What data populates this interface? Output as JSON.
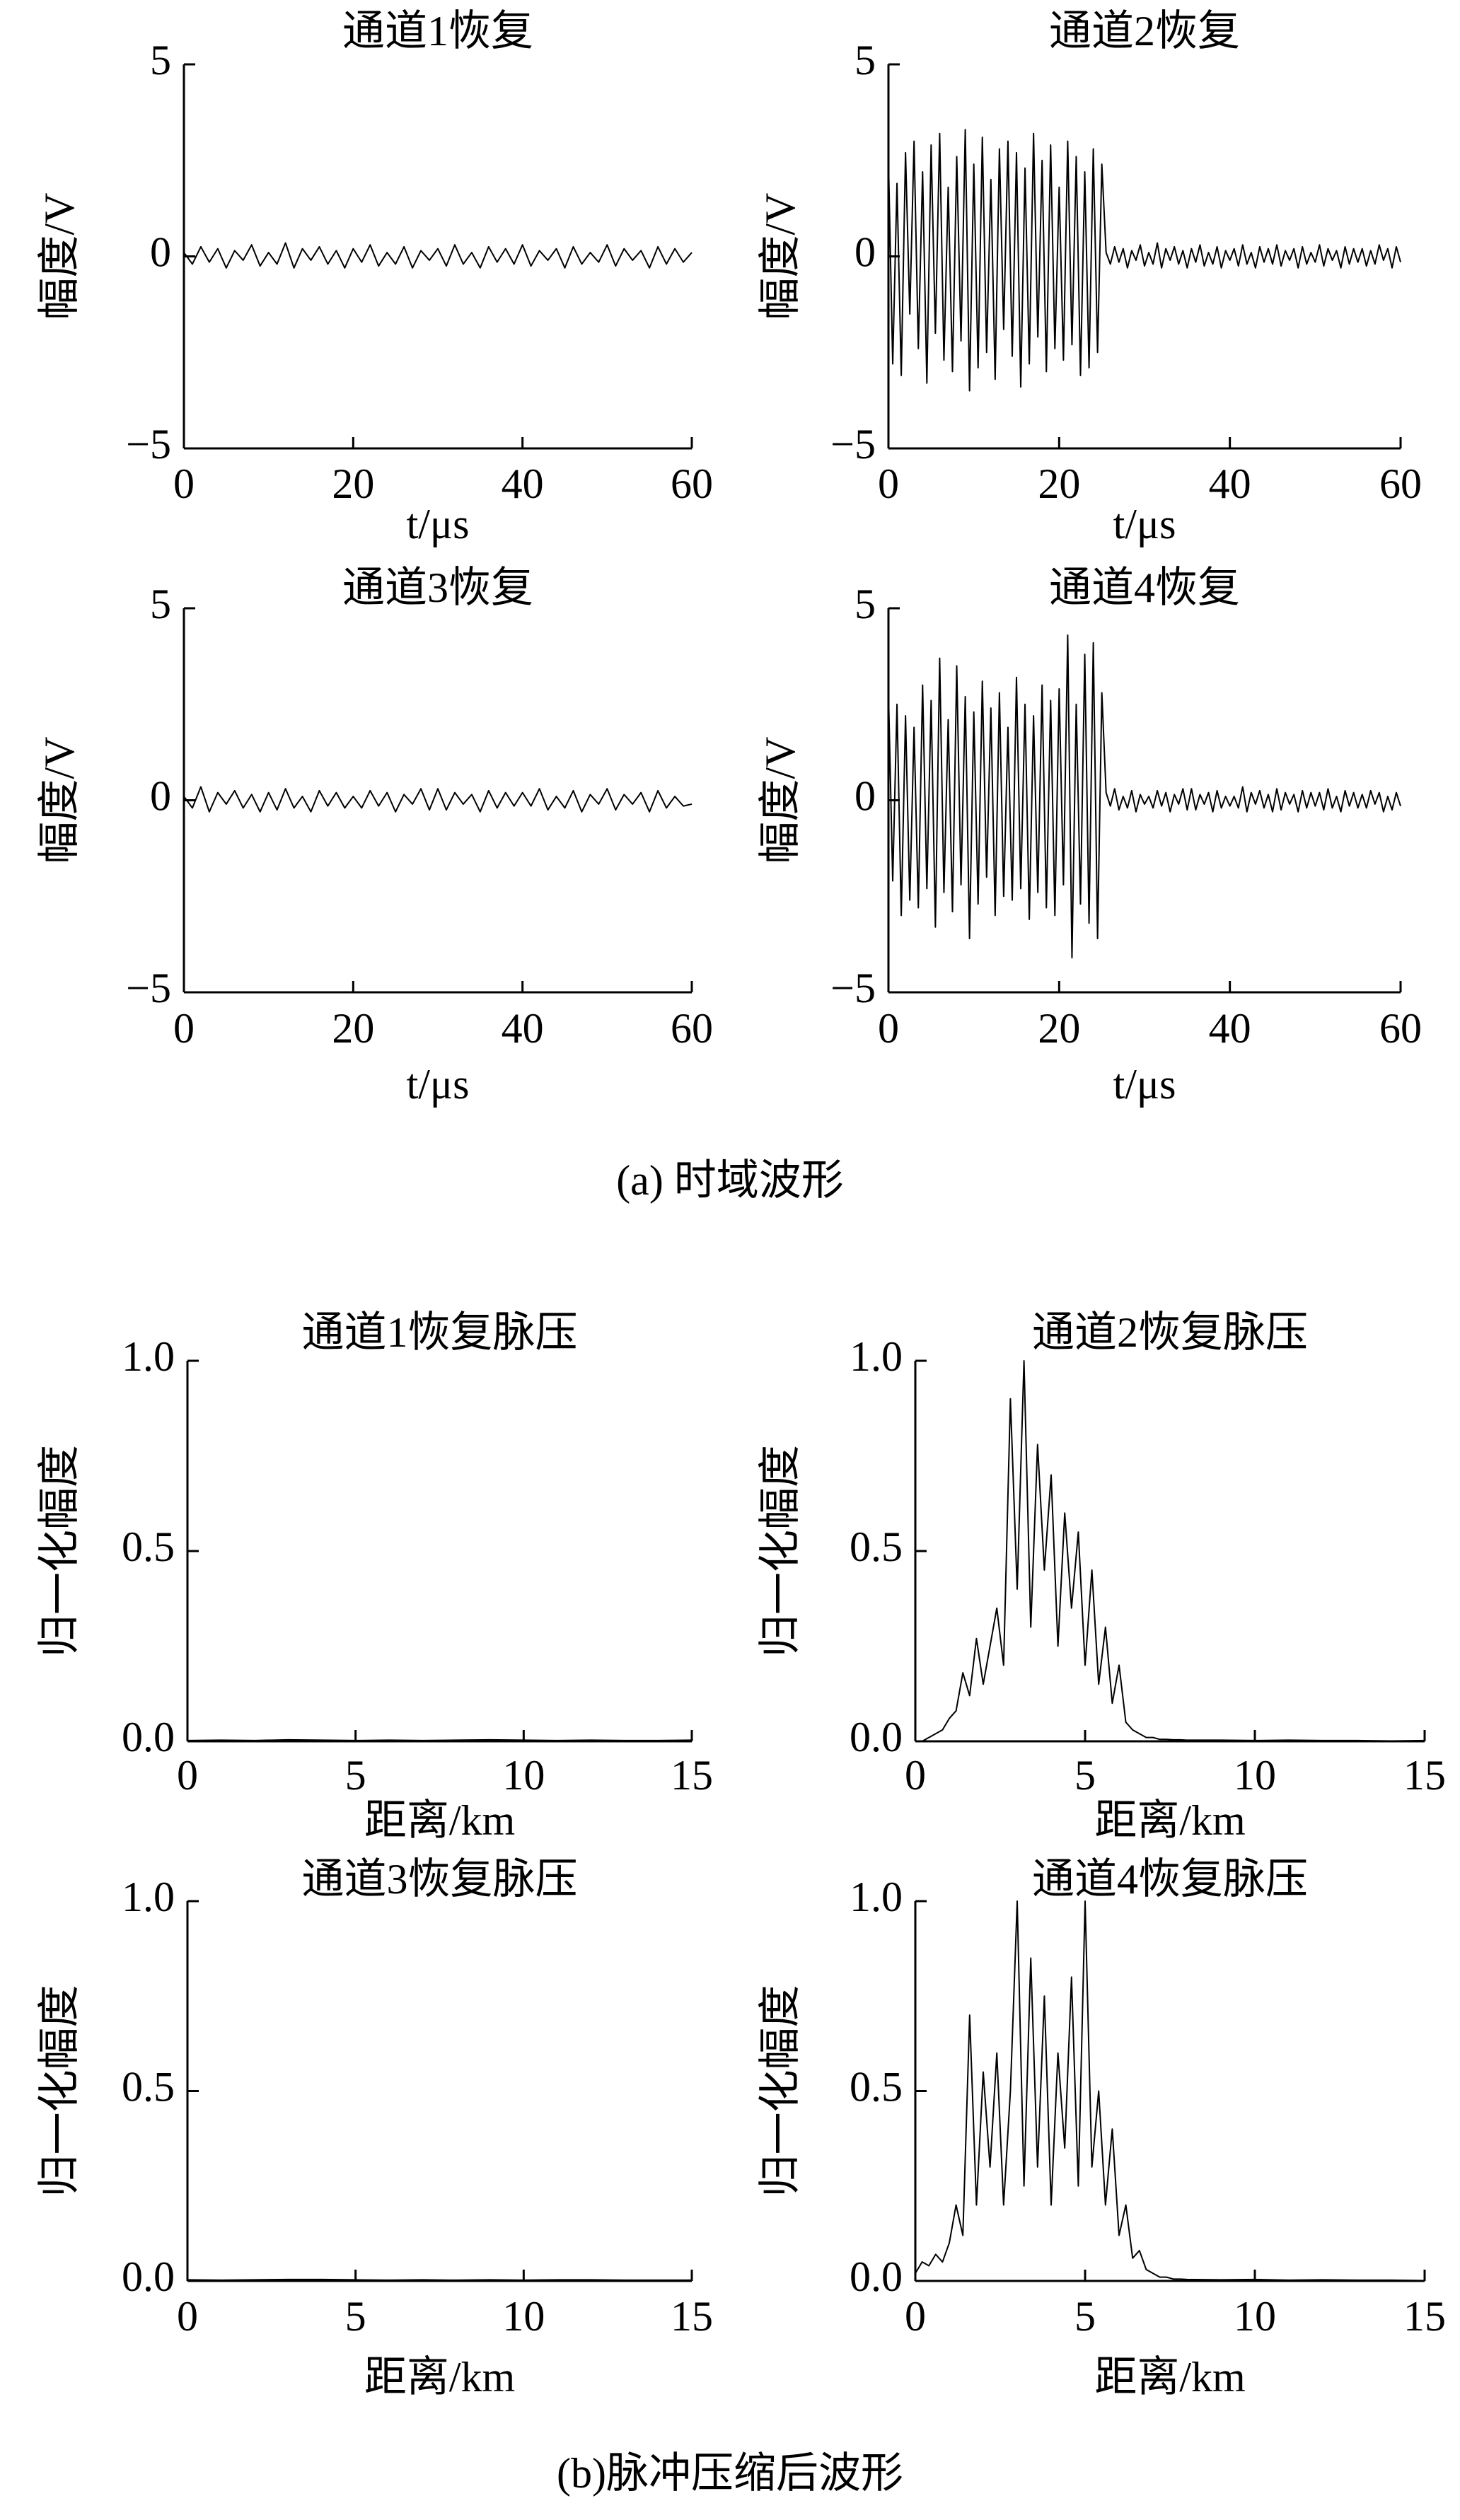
{
  "chart_data": [
    {
      "type": "line",
      "title": "通道1恢复",
      "xlabel": "t/μs",
      "ylabel": "幅度/V",
      "color": "#000000",
      "xlim": [
        0,
        60
      ],
      "ylim": [
        -5,
        5
      ],
      "xticks": [
        0,
        20,
        40,
        60
      ],
      "yticks": [
        {
          "value": -5,
          "label": "−5"
        },
        0,
        5
      ],
      "x": [
        0,
        1,
        2,
        3,
        4,
        5,
        6,
        7,
        8,
        9,
        10,
        11,
        12,
        13,
        14,
        15,
        16,
        17,
        18,
        19,
        20,
        21,
        22,
        23,
        24,
        25,
        26,
        27,
        28,
        29,
        30,
        31,
        32,
        33,
        34,
        35,
        36,
        37,
        38,
        39,
        40,
        41,
        42,
        43,
        44,
        45,
        46,
        47,
        48,
        49,
        50,
        51,
        52,
        53,
        54,
        55,
        56,
        57,
        58,
        59,
        60
      ],
      "values": [
        0.1,
        -0.2,
        0.25,
        -0.15,
        0.2,
        -0.3,
        0.15,
        -0.1,
        0.3,
        -0.25,
        0.1,
        -0.2,
        0.35,
        -0.3,
        0.2,
        -0.1,
        0.25,
        -0.2,
        0.15,
        -0.3,
        0.2,
        -0.15,
        0.3,
        -0.25,
        0.1,
        -0.2,
        0.25,
        -0.3,
        0.15,
        -0.1,
        0.2,
        -0.25,
        0.3,
        -0.2,
        0.1,
        -0.3,
        0.25,
        -0.15,
        0.2,
        -0.2,
        0.3,
        -0.25,
        0.15,
        -0.1,
        0.2,
        -0.3,
        0.25,
        -0.2,
        0.1,
        -0.15,
        0.3,
        -0.25,
        0.2,
        -0.1,
        0.15,
        -0.3,
        0.25,
        -0.2,
        0.2,
        -0.15,
        0.1
      ]
    },
    {
      "type": "line",
      "title": "通道2恢复",
      "xlabel": "t/μs",
      "ylabel": "幅度/V",
      "color": "#000000",
      "xlim": [
        0,
        60
      ],
      "ylim": [
        -5,
        5
      ],
      "xticks": [
        0,
        20,
        40,
        60
      ],
      "yticks": [
        {
          "value": -5,
          "label": "−5"
        },
        0,
        5
      ],
      "x": [
        0,
        0.5,
        1,
        1.5,
        2,
        2.5,
        3,
        3.5,
        4,
        4.5,
        5,
        5.5,
        6,
        6.5,
        7,
        7.5,
        8,
        8.5,
        9,
        9.5,
        10,
        10.5,
        11,
        11.5,
        12,
        12.5,
        13,
        13.5,
        14,
        14.5,
        15,
        15.5,
        16,
        16.5,
        17,
        17.5,
        18,
        18.5,
        19,
        19.5,
        20,
        20.5,
        21,
        21.5,
        22,
        22.5,
        23,
        23.5,
        24,
        24.5,
        25,
        25.5,
        26,
        26.5,
        27,
        27.5,
        28,
        28.5,
        29,
        29.5,
        30,
        30.5,
        31,
        31.5,
        32,
        32.5,
        33,
        33.5,
        34,
        34.5,
        35,
        35.5,
        36,
        36.5,
        37,
        37.5,
        38,
        38.5,
        39,
        39.5,
        40,
        40.5,
        41,
        41.5,
        42,
        42.5,
        43,
        43.5,
        44,
        44.5,
        45,
        45.5,
        46,
        46.5,
        47,
        47.5,
        48,
        48.5,
        49,
        49.5,
        50,
        50.5,
        51,
        51.5,
        52,
        52.5,
        53,
        53.5,
        54,
        54.5,
        55,
        55.5,
        56,
        56.5,
        57,
        57.5,
        58,
        58.5,
        59,
        59.5,
        60
      ],
      "values": [
        2.5,
        -2.8,
        1.9,
        -3.1,
        2.7,
        -1.5,
        3.0,
        -2.4,
        2.2,
        -3.3,
        2.9,
        -2.0,
        3.2,
        -2.7,
        1.8,
        -3.0,
        2.6,
        -2.2,
        3.3,
        -3.5,
        2.4,
        -2.9,
        3.1,
        -2.5,
        2.0,
        -3.2,
        2.8,
        -1.9,
        3.0,
        -2.6,
        2.7,
        -3.4,
        2.3,
        -2.8,
        3.2,
        -2.1,
        2.5,
        -3.0,
        2.9,
        -2.4,
        1.8,
        -2.7,
        3.0,
        -2.3,
        2.6,
        -3.1,
        2.2,
        -2.9,
        2.8,
        -2.5,
        2.4,
        0.1,
        -0.2,
        0.25,
        -0.15,
        0.2,
        -0.3,
        0.15,
        -0.1,
        0.3,
        -0.25,
        0.1,
        -0.2,
        0.35,
        -0.3,
        0.2,
        -0.1,
        0.25,
        -0.2,
        0.15,
        -0.3,
        0.2,
        -0.15,
        0.3,
        -0.25,
        0.1,
        -0.2,
        0.25,
        -0.3,
        0.15,
        -0.1,
        0.2,
        -0.25,
        0.3,
        -0.2,
        0.1,
        -0.3,
        0.25,
        -0.15,
        0.2,
        -0.2,
        0.3,
        -0.25,
        0.15,
        -0.1,
        0.2,
        -0.3,
        0.25,
        -0.2,
        0.1,
        -0.15,
        0.3,
        -0.25,
        0.2,
        -0.1,
        0.15,
        -0.3,
        0.25,
        -0.2,
        0.2,
        -0.15,
        0.2,
        -0.25,
        0.15,
        -0.2,
        0.3,
        -0.1,
        0.2,
        -0.3,
        0.25,
        -0.15
      ]
    },
    {
      "type": "line",
      "title": "通道3恢复",
      "xlabel": "t/μs",
      "ylabel": "幅度/V",
      "color": "#000000",
      "xlim": [
        0,
        60
      ],
      "ylim": [
        -5,
        5
      ],
      "xticks": [
        0,
        20,
        40,
        60
      ],
      "yticks": [
        {
          "value": -5,
          "label": "−5"
        },
        0,
        5
      ],
      "x": [
        0,
        1,
        2,
        3,
        4,
        5,
        6,
        7,
        8,
        9,
        10,
        11,
        12,
        13,
        14,
        15,
        16,
        17,
        18,
        19,
        20,
        21,
        22,
        23,
        24,
        25,
        26,
        27,
        28,
        29,
        30,
        31,
        32,
        33,
        34,
        35,
        36,
        37,
        38,
        39,
        40,
        41,
        42,
        43,
        44,
        45,
        46,
        47,
        48,
        49,
        50,
        51,
        52,
        53,
        54,
        55,
        56,
        57,
        58,
        59,
        60
      ],
      "values": [
        0.1,
        -0.2,
        0.35,
        -0.3,
        0.2,
        -0.1,
        0.25,
        -0.2,
        0.15,
        -0.3,
        0.2,
        -0.25,
        0.3,
        -0.2,
        0.1,
        -0.3,
        0.25,
        -0.15,
        0.2,
        -0.2,
        0.1,
        -0.2,
        0.25,
        -0.15,
        0.2,
        -0.3,
        0.15,
        -0.1,
        0.3,
        -0.25,
        0.3,
        -0.25,
        0.2,
        -0.1,
        0.15,
        -0.3,
        0.25,
        -0.2,
        0.2,
        -0.15,
        0.2,
        -0.15,
        0.3,
        -0.25,
        0.1,
        -0.2,
        0.25,
        -0.3,
        0.15,
        -0.1,
        0.3,
        -0.25,
        0.15,
        -0.1,
        0.2,
        -0.3,
        0.25,
        -0.2,
        0.1,
        -0.15,
        -0.1
      ]
    },
    {
      "type": "line",
      "title": "通道4恢复",
      "xlabel": "t/μs",
      "ylabel": "幅度/V",
      "color": "#000000",
      "xlim": [
        0,
        60
      ],
      "ylim": [
        -5,
        5
      ],
      "xticks": [
        0,
        20,
        40,
        60
      ],
      "yticks": [
        {
          "value": -5,
          "label": "−5"
        },
        0,
        5
      ],
      "x": [
        0,
        0.5,
        1,
        1.5,
        2,
        2.5,
        3,
        3.5,
        4,
        4.5,
        5,
        5.5,
        6,
        6.5,
        7,
        7.5,
        8,
        8.5,
        9,
        9.5,
        10,
        10.5,
        11,
        11.5,
        12,
        12.5,
        13,
        13.5,
        14,
        14.5,
        15,
        15.5,
        16,
        16.5,
        17,
        17.5,
        18,
        18.5,
        19,
        19.5,
        20,
        20.5,
        21,
        21.5,
        22,
        22.5,
        23,
        23.5,
        24,
        24.5,
        25,
        25.5,
        26,
        26.5,
        27,
        27.5,
        28,
        28.5,
        29,
        29.5,
        30,
        30.5,
        31,
        31.5,
        32,
        32.5,
        33,
        33.5,
        34,
        34.5,
        35,
        35.5,
        36,
        36.5,
        37,
        37.5,
        38,
        38.5,
        39,
        39.5,
        40,
        40.5,
        41,
        41.5,
        42,
        42.5,
        43,
        43.5,
        44,
        44.5,
        45,
        45.5,
        46,
        46.5,
        47,
        47.5,
        48,
        48.5,
        49,
        49.5,
        50,
        50.5,
        51,
        51.5,
        52,
        52.5,
        53,
        53.5,
        54,
        54.5,
        55,
        55.5,
        56,
        56.5,
        57,
        57.5,
        58,
        58.5,
        59,
        59.5,
        60
      ],
      "values": [
        2.8,
        -2.1,
        2.5,
        -3.0,
        2.2,
        -2.6,
        1.9,
        -2.8,
        3.0,
        -2.3,
        2.6,
        -3.3,
        3.7,
        -2.4,
        2.1,
        -2.9,
        3.5,
        -2.2,
        2.7,
        -3.6,
        2.3,
        -2.7,
        3.1,
        -2.0,
        2.4,
        -3.0,
        2.8,
        -2.5,
        1.9,
        -2.6,
        3.2,
        -2.3,
        2.5,
        -3.1,
        2.2,
        -2.4,
        3.0,
        -2.8,
        2.6,
        -3.0,
        2.9,
        -2.2,
        4.3,
        -4.1,
        2.5,
        -2.7,
        3.8,
        -3.2,
        4.1,
        -3.6,
        2.8,
        0.2,
        -0.15,
        0.3,
        -0.25,
        0.1,
        -0.2,
        0.25,
        -0.3,
        0.15,
        -0.1,
        0.1,
        -0.2,
        0.25,
        -0.15,
        0.2,
        -0.3,
        0.15,
        -0.1,
        0.3,
        -0.25,
        0.3,
        -0.25,
        0.15,
        -0.1,
        0.2,
        -0.3,
        0.25,
        -0.2,
        0.1,
        -0.15,
        0.1,
        -0.2,
        0.35,
        -0.3,
        0.2,
        -0.1,
        0.25,
        -0.2,
        0.15,
        -0.3,
        0.3,
        -0.25,
        0.2,
        -0.1,
        0.15,
        -0.3,
        0.25,
        -0.2,
        0.2,
        -0.15,
        0.2,
        -0.25,
        0.3,
        -0.2,
        0.1,
        -0.3,
        0.25,
        -0.15,
        0.2,
        -0.2,
        0.15,
        -0.2,
        0.25,
        -0.1,
        0.2,
        -0.3,
        0.1,
        -0.25,
        0.2,
        -0.15
      ]
    },
    {
      "type": "line",
      "title": "通道1恢复脉压",
      "xlabel": "距离/km",
      "ylabel": "归一化幅度",
      "color": "#000000",
      "xlim": [
        0,
        15
      ],
      "ylim": [
        0,
        1
      ],
      "xticks": [
        0,
        5,
        10,
        15
      ],
      "yticks": [
        {
          "value": 0,
          "label": "0.0"
        },
        0.5,
        {
          "value": 1,
          "label": "1.0"
        }
      ],
      "x": [
        0,
        1,
        2,
        3,
        4,
        5,
        6,
        7,
        8,
        9,
        10,
        11,
        12,
        13,
        14,
        15
      ],
      "values": [
        0.002,
        0.003,
        0.002,
        0.004,
        0.003,
        0.002,
        0.003,
        0.002,
        0.003,
        0.004,
        0.003,
        0.002,
        0.003,
        0.002,
        0.002,
        0.003
      ]
    },
    {
      "type": "line",
      "title": "通道2恢复脉压",
      "xlabel": "距离/km",
      "ylabel": "归一化幅度",
      "color": "#000000",
      "xlim": [
        0,
        15
      ],
      "ylim": [
        0,
        1
      ],
      "xticks": [
        0,
        5,
        10,
        15
      ],
      "yticks": [
        {
          "value": 0,
          "label": "0.0"
        },
        0.5,
        {
          "value": 1,
          "label": "1.0"
        }
      ],
      "x": [
        0,
        0.2,
        0.4,
        0.6,
        0.8,
        1,
        1.2,
        1.4,
        1.6,
        1.8,
        2,
        2.2,
        2.4,
        2.6,
        2.8,
        3,
        3.2,
        3.4,
        3.6,
        3.8,
        4,
        4.2,
        4.4,
        4.6,
        4.8,
        5,
        5.2,
        5.4,
        5.6,
        5.8,
        6,
        6.2,
        6.4,
        6.6,
        6.8,
        7,
        7.2,
        7.4,
        7.6,
        7.8,
        8,
        9,
        10,
        11,
        12,
        13,
        14,
        15
      ],
      "values": [
        0,
        0,
        0.01,
        0.02,
        0.03,
        0.06,
        0.08,
        0.18,
        0.12,
        0.27,
        0.15,
        0.25,
        0.35,
        0.2,
        0.9,
        0.4,
        1.0,
        0.3,
        0.78,
        0.45,
        0.7,
        0.25,
        0.6,
        0.35,
        0.55,
        0.2,
        0.45,
        0.15,
        0.3,
        0.1,
        0.2,
        0.05,
        0.03,
        0.02,
        0.01,
        0.01,
        0.005,
        0.005,
        0.004,
        0.004,
        0.003,
        0.003,
        0.002,
        0.003,
        0.002,
        0.002,
        0.001,
        0.002
      ]
    },
    {
      "type": "line",
      "title": "通道3恢复脉压",
      "xlabel": "距离/km",
      "ylabel": "归一化幅度",
      "color": "#000000",
      "xlim": [
        0,
        15
      ],
      "ylim": [
        0,
        1
      ],
      "xticks": [
        0,
        5,
        10,
        15
      ],
      "yticks": [
        {
          "value": 0,
          "label": "0.0"
        },
        0.5,
        {
          "value": 1,
          "label": "1.0"
        }
      ],
      "x": [
        0,
        1,
        2,
        3,
        4,
        5,
        6,
        7,
        8,
        9,
        10,
        11,
        12,
        13,
        14,
        15
      ],
      "values": [
        0.003,
        0.002,
        0.003,
        0.004,
        0.004,
        0.003,
        0.002,
        0.003,
        0.002,
        0.003,
        0.002,
        0.003,
        0.003,
        0.002,
        0.002,
        0.002
      ]
    },
    {
      "type": "line",
      "title": "通道4恢复脉压",
      "xlabel": "距离/km",
      "ylabel": "归一化幅度",
      "color": "#000000",
      "xlim": [
        0,
        15
      ],
      "ylim": [
        0,
        1
      ],
      "xticks": [
        0,
        5,
        10,
        15
      ],
      "yticks": [
        {
          "value": 0,
          "label": "0.0"
        },
        0.5,
        {
          "value": 1,
          "label": "1.0"
        }
      ],
      "x": [
        0,
        0.2,
        0.4,
        0.6,
        0.8,
        1,
        1.2,
        1.4,
        1.6,
        1.8,
        2,
        2.2,
        2.4,
        2.6,
        2.8,
        3,
        3.2,
        3.4,
        3.6,
        3.8,
        4,
        4.2,
        4.4,
        4.6,
        4.8,
        5,
        5.2,
        5.4,
        5.6,
        5.8,
        6,
        6.2,
        6.4,
        6.6,
        6.8,
        7,
        7.2,
        7.4,
        7.6,
        7.8,
        8,
        9,
        10,
        11,
        12,
        13,
        14,
        15
      ],
      "values": [
        0.02,
        0.05,
        0.04,
        0.07,
        0.05,
        0.1,
        0.2,
        0.12,
        0.7,
        0.2,
        0.55,
        0.3,
        0.6,
        0.2,
        0.5,
        1.0,
        0.25,
        0.85,
        0.3,
        0.75,
        0.2,
        0.6,
        0.35,
        0.8,
        0.25,
        1.0,
        0.3,
        0.5,
        0.2,
        0.4,
        0.12,
        0.2,
        0.06,
        0.08,
        0.03,
        0.02,
        0.01,
        0.01,
        0.005,
        0.005,
        0.004,
        0.003,
        0.004,
        0.002,
        0.003,
        0.002,
        0.002,
        0.001
      ]
    }
  ],
  "captions": [
    "(a) 时域波形",
    "(b)脉冲压缩后波形"
  ]
}
